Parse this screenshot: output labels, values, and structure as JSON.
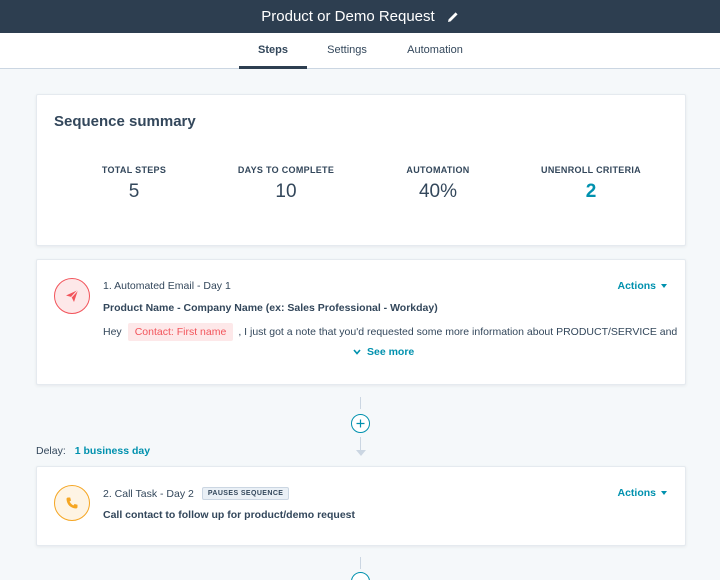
{
  "header": {
    "title": "Product or Demo Request",
    "edit_icon": "pencil-icon"
  },
  "tabs": [
    {
      "label": "Steps",
      "active": true
    },
    {
      "label": "Settings",
      "active": false
    },
    {
      "label": "Automation",
      "active": false
    }
  ],
  "summary": {
    "title": "Sequence summary",
    "stats": [
      {
        "label": "TOTAL STEPS",
        "value": "5"
      },
      {
        "label": "DAYS TO COMPLETE",
        "value": "10"
      },
      {
        "label": "AUTOMATION",
        "value": "40%"
      },
      {
        "label": "UNENROLL CRITERIA",
        "value": "2"
      }
    ]
  },
  "steps": [
    {
      "heading": "1. Automated Email - Day 1",
      "icon": "paper-plane-icon",
      "subject": "Product Name - Company Name (ex: Sales Professional - Workday)",
      "body_prefix": "Hey",
      "token": "Contact: First name",
      "body_suffix": ", I just got a note that you'd requested some more information about PRODUCT/SERVICE and",
      "see_more": "See more",
      "actions": "Actions"
    },
    {
      "heading": "2. Call Task - Day 2",
      "icon": "phone-icon",
      "badge": "PAUSES SEQUENCE",
      "subject": "Call contact to follow up for product/demo request",
      "actions": "Actions"
    }
  ],
  "delay": {
    "label": "Delay:",
    "value": "1 business day"
  },
  "colors": {
    "header_bg": "#2d3e50",
    "link": "#0091ae",
    "email_accent": "#f2545b",
    "call_accent": "#f5a623"
  }
}
